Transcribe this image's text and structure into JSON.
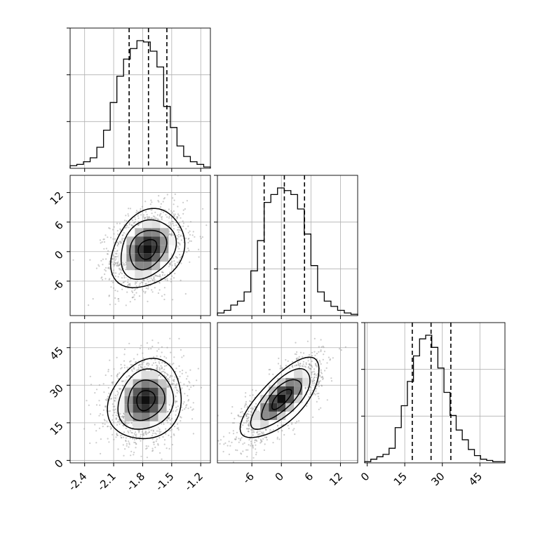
{
  "chart_data": {
    "type": "corner",
    "xlabel": "",
    "ylabel": "",
    "grid": true,
    "params": [
      {
        "range": [
          -2.55,
          -1.1
        ],
        "ticks": [
          "-2.4",
          "-2.1",
          "-1.8",
          "-1.5",
          "-1.2"
        ],
        "tick_values": [
          -2.4,
          -2.1,
          -1.8,
          -1.5,
          -1.2
        ],
        "quantiles": [
          -1.94,
          -1.74,
          -1.55
        ],
        "hist_heights": [
          2,
          3,
          5,
          8,
          16,
          29,
          50,
          70,
          83,
          91,
          97,
          96,
          89,
          77,
          47,
          31,
          17,
          9,
          5,
          3,
          1
        ]
      },
      {
        "range": [
          -13,
          15.5
        ],
        "ticks": [
          "-6",
          "0",
          "6",
          "12"
        ],
        "tick_values": [
          -6,
          0,
          6,
          12
        ],
        "quantiles": [
          -3.5,
          0.6,
          4.7
        ],
        "hist_heights": [
          2,
          4,
          8,
          11,
          18,
          34,
          57,
          86,
          92,
          97,
          95,
          92,
          81,
          62,
          38,
          18,
          11,
          7,
          4,
          2,
          1
        ]
      },
      {
        "range": [
          -1,
          55
        ],
        "ticks": [
          "0",
          "15",
          "30",
          "45"
        ],
        "tick_values": [
          0,
          15,
          30,
          45
        ],
        "quantiles": [
          18.0,
          25.5,
          33.4
        ],
        "hist_heights": [
          1,
          3,
          5,
          7,
          12,
          29,
          47,
          67,
          88,
          102,
          105,
          95,
          78,
          58,
          39,
          27,
          19,
          11,
          6,
          3,
          2,
          1,
          1
        ]
      }
    ],
    "pairs": [
      {
        "x": 0,
        "y": 1,
        "center": [
          -1.75,
          0.5
        ],
        "sd": [
          0.19,
          4.0
        ],
        "corr": 0.25
      },
      {
        "x": 0,
        "y": 2,
        "center": [
          -1.77,
          24.0
        ],
        "sd": [
          0.19,
          8.0
        ],
        "corr": 0.15
      },
      {
        "x": 1,
        "y": 2,
        "center": [
          0.0,
          24.5
        ],
        "sd": [
          4.0,
          8.0
        ],
        "corr": 0.72
      }
    ]
  }
}
